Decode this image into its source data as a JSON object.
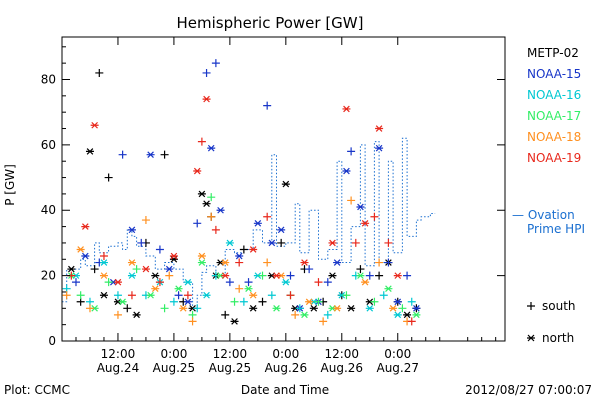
{
  "chart_data": {
    "type": "scatter",
    "title": "Hemispheric Power [GW]",
    "ylabel": "P [GW]",
    "xlabel": "Date and Time",
    "ylim": [
      0,
      93
    ],
    "y_ticks": [
      0,
      20,
      40,
      60,
      80
    ],
    "x_range_hours": [
      0,
      95
    ],
    "x_ticks": [
      {
        "hour": 12,
        "time": "12:00",
        "date": "Aug.24"
      },
      {
        "hour": 24,
        "time": "0:00",
        "date": "Aug.25"
      },
      {
        "hour": 36,
        "time": "12:00",
        "date": "Aug.25"
      },
      {
        "hour": 48,
        "time": "0:00",
        "date": "Aug.26"
      },
      {
        "hour": 60,
        "time": "12:00",
        "date": "Aug.26"
      },
      {
        "hour": 72,
        "time": "0:00",
        "date": "Aug.27"
      }
    ],
    "legend": {
      "placement": "right",
      "marker_south_label": "south",
      "marker_north_label": "north"
    },
    "series": [
      {
        "name": "METP-02",
        "color": "#000000",
        "points": [
          [
            2,
            22,
            "n"
          ],
          [
            4,
            12,
            "s"
          ],
          [
            6,
            58,
            "n"
          ],
          [
            7,
            22,
            "s"
          ],
          [
            8,
            82,
            "s"
          ],
          [
            9,
            14,
            "n"
          ],
          [
            10,
            50,
            "s"
          ],
          [
            12,
            12,
            "n"
          ],
          [
            14,
            10,
            "s"
          ],
          [
            16,
            8,
            "n"
          ],
          [
            18,
            30,
            "s"
          ],
          [
            20,
            20,
            "n"
          ],
          [
            22,
            57,
            "s"
          ],
          [
            24,
            25,
            "n"
          ],
          [
            26,
            12,
            "s"
          ],
          [
            28,
            10,
            "n"
          ],
          [
            30,
            45,
            "n"
          ],
          [
            31,
            42,
            "n"
          ],
          [
            32,
            38,
            "s"
          ],
          [
            33,
            20,
            "n"
          ],
          [
            34,
            24,
            "n"
          ],
          [
            35,
            8,
            "s"
          ],
          [
            37,
            6,
            "n"
          ],
          [
            39,
            28,
            "s"
          ],
          [
            41,
            10,
            "n"
          ],
          [
            43,
            12,
            "s"
          ],
          [
            45,
            20,
            "n"
          ],
          [
            47,
            30,
            "s"
          ],
          [
            48,
            48,
            "n"
          ],
          [
            50,
            10,
            "n"
          ],
          [
            52,
            22,
            "s"
          ],
          [
            54,
            10,
            "n"
          ],
          [
            56,
            12,
            "s"
          ],
          [
            58,
            20,
            "n"
          ],
          [
            60,
            14,
            "s"
          ],
          [
            62,
            10,
            "n"
          ],
          [
            64,
            22,
            "s"
          ],
          [
            66,
            12,
            "n"
          ],
          [
            68,
            20,
            "s"
          ],
          [
            70,
            24,
            "n"
          ],
          [
            72,
            12,
            "s"
          ],
          [
            74,
            8,
            "n"
          ],
          [
            76,
            10,
            "s"
          ]
        ]
      },
      {
        "name": "NOAA-15",
        "color": "#1836c8",
        "points": [
          [
            3,
            18,
            "s"
          ],
          [
            5,
            26,
            "n"
          ],
          [
            8,
            24,
            "s"
          ],
          [
            11,
            18,
            "n"
          ],
          [
            13,
            57,
            "s"
          ],
          [
            15,
            34,
            "n"
          ],
          [
            17,
            30,
            "s"
          ],
          [
            19,
            57,
            "n"
          ],
          [
            21,
            28,
            "s"
          ],
          [
            23,
            22,
            "n"
          ],
          [
            25,
            14,
            "s"
          ],
          [
            27,
            12,
            "n"
          ],
          [
            29,
            36,
            "s"
          ],
          [
            31,
            82,
            "s"
          ],
          [
            32,
            59,
            "n"
          ],
          [
            33,
            85,
            "s"
          ],
          [
            34,
            40,
            "n"
          ],
          [
            36,
            18,
            "s"
          ],
          [
            38,
            26,
            "n"
          ],
          [
            40,
            18,
            "s"
          ],
          [
            42,
            36,
            "n"
          ],
          [
            44,
            72,
            "s"
          ],
          [
            45,
            30,
            "n"
          ],
          [
            47,
            34,
            "n"
          ],
          [
            49,
            20,
            "s"
          ],
          [
            51,
            10,
            "n"
          ],
          [
            53,
            22,
            "s"
          ],
          [
            55,
            12,
            "n"
          ],
          [
            57,
            18,
            "s"
          ],
          [
            59,
            24,
            "n"
          ],
          [
            61,
            52,
            "n"
          ],
          [
            62,
            58,
            "s"
          ],
          [
            64,
            41,
            "n"
          ],
          [
            66,
            20,
            "s"
          ],
          [
            68,
            59,
            "n"
          ],
          [
            70,
            24,
            "s"
          ],
          [
            72,
            12,
            "n"
          ],
          [
            74,
            20,
            "s"
          ],
          [
            76,
            10,
            "n"
          ]
        ]
      },
      {
        "name": "NOAA-16",
        "color": "#00c8d2",
        "points": [
          [
            1,
            16,
            "s"
          ],
          [
            3,
            20,
            "n"
          ],
          [
            6,
            12,
            "s"
          ],
          [
            9,
            24,
            "n"
          ],
          [
            12,
            14,
            "s"
          ],
          [
            15,
            20,
            "n"
          ],
          [
            18,
            14,
            "s"
          ],
          [
            21,
            18,
            "n"
          ],
          [
            24,
            12,
            "s"
          ],
          [
            27,
            18,
            "n"
          ],
          [
            29,
            10,
            "s"
          ],
          [
            31,
            14,
            "n"
          ],
          [
            33,
            20,
            "s"
          ],
          [
            36,
            30,
            "n"
          ],
          [
            39,
            12,
            "s"
          ],
          [
            42,
            20,
            "n"
          ],
          [
            45,
            14,
            "s"
          ],
          [
            48,
            18,
            "n"
          ],
          [
            51,
            10,
            "s"
          ],
          [
            54,
            12,
            "n"
          ],
          [
            57,
            8,
            "s"
          ],
          [
            60,
            14,
            "n"
          ],
          [
            63,
            20,
            "s"
          ],
          [
            66,
            10,
            "n"
          ],
          [
            69,
            14,
            "s"
          ],
          [
            72,
            8,
            "n"
          ],
          [
            75,
            12,
            "s"
          ]
        ]
      },
      {
        "name": "NOAA-17",
        "color": "#33ee66",
        "points": [
          [
            2,
            20,
            "n"
          ],
          [
            4,
            14,
            "s"
          ],
          [
            7,
            10,
            "n"
          ],
          [
            10,
            18,
            "s"
          ],
          [
            13,
            12,
            "n"
          ],
          [
            16,
            22,
            "s"
          ],
          [
            19,
            14,
            "n"
          ],
          [
            22,
            10,
            "s"
          ],
          [
            25,
            16,
            "n"
          ],
          [
            28,
            8,
            "s"
          ],
          [
            30,
            24,
            "n"
          ],
          [
            32,
            44,
            "s"
          ],
          [
            34,
            20,
            "n"
          ],
          [
            37,
            12,
            "s"
          ],
          [
            40,
            16,
            "n"
          ],
          [
            43,
            20,
            "s"
          ],
          [
            46,
            10,
            "n"
          ],
          [
            49,
            14,
            "s"
          ],
          [
            52,
            8,
            "n"
          ],
          [
            55,
            12,
            "s"
          ],
          [
            58,
            10,
            "n"
          ],
          [
            61,
            14,
            "s"
          ],
          [
            64,
            20,
            "n"
          ],
          [
            67,
            12,
            "s"
          ],
          [
            70,
            16,
            "n"
          ],
          [
            73,
            10,
            "s"
          ],
          [
            76,
            8,
            "n"
          ]
        ]
      },
      {
        "name": "NOAA-18",
        "color": "#ff9020",
        "points": [
          [
            1,
            14,
            "s"
          ],
          [
            4,
            28,
            "n"
          ],
          [
            6,
            10,
            "s"
          ],
          [
            9,
            20,
            "n"
          ],
          [
            12,
            8,
            "s"
          ],
          [
            15,
            24,
            "n"
          ],
          [
            18,
            37,
            "s"
          ],
          [
            20,
            16,
            "n"
          ],
          [
            23,
            20,
            "s"
          ],
          [
            26,
            10,
            "n"
          ],
          [
            28,
            6,
            "s"
          ],
          [
            30,
            26,
            "n"
          ],
          [
            32,
            38,
            "s"
          ],
          [
            35,
            24,
            "n"
          ],
          [
            38,
            16,
            "s"
          ],
          [
            41,
            14,
            "n"
          ],
          [
            44,
            24,
            "s"
          ],
          [
            47,
            20,
            "n"
          ],
          [
            50,
            8,
            "s"
          ],
          [
            53,
            12,
            "n"
          ],
          [
            56,
            6,
            "s"
          ],
          [
            59,
            10,
            "n"
          ],
          [
            62,
            43,
            "s"
          ],
          [
            65,
            18,
            "n"
          ],
          [
            68,
            24,
            "s"
          ],
          [
            71,
            10,
            "n"
          ],
          [
            74,
            6,
            "s"
          ]
        ]
      },
      {
        "name": "NOAA-19",
        "color": "#e8281c",
        "points": [
          [
            2,
            20,
            "s"
          ],
          [
            5,
            35,
            "n"
          ],
          [
            7,
            66,
            "n"
          ],
          [
            9,
            26,
            "s"
          ],
          [
            12,
            18,
            "n"
          ],
          [
            15,
            14,
            "s"
          ],
          [
            18,
            22,
            "n"
          ],
          [
            21,
            18,
            "s"
          ],
          [
            24,
            26,
            "n"
          ],
          [
            27,
            14,
            "s"
          ],
          [
            29,
            52,
            "n"
          ],
          [
            30,
            61,
            "s"
          ],
          [
            31,
            74,
            "n"
          ],
          [
            33,
            34,
            "s"
          ],
          [
            35,
            20,
            "n"
          ],
          [
            38,
            24,
            "s"
          ],
          [
            41,
            28,
            "n"
          ],
          [
            44,
            38,
            "s"
          ],
          [
            46,
            20,
            "n"
          ],
          [
            49,
            14,
            "s"
          ],
          [
            52,
            24,
            "n"
          ],
          [
            55,
            18,
            "s"
          ],
          [
            58,
            30,
            "n"
          ],
          [
            61,
            71,
            "n"
          ],
          [
            63,
            30,
            "s"
          ],
          [
            65,
            36,
            "n"
          ],
          [
            67,
            38,
            "s"
          ],
          [
            68,
            65,
            "n"
          ],
          [
            70,
            30,
            "s"
          ],
          [
            72,
            20,
            "n"
          ],
          [
            75,
            6,
            "s"
          ]
        ]
      }
    ],
    "ovation": {
      "name": "— Ovation Prime HPI",
      "name_line1": "— Ovation",
      "name_line2": "Prime HPI",
      "color": "#1a6fd0",
      "steps": [
        [
          0,
          12
        ],
        [
          1,
          22
        ],
        [
          4,
          25
        ],
        [
          5,
          23
        ],
        [
          7,
          30
        ],
        [
          8,
          27
        ],
        [
          10,
          29
        ],
        [
          12,
          30
        ],
        [
          13,
          28
        ],
        [
          14,
          34
        ],
        [
          15,
          32
        ],
        [
          16,
          29
        ],
        [
          18,
          26
        ],
        [
          20,
          22
        ],
        [
          22,
          24
        ],
        [
          24,
          22
        ],
        [
          26,
          18
        ],
        [
          28,
          10
        ],
        [
          29,
          14
        ],
        [
          30,
          21
        ],
        [
          31,
          23
        ],
        [
          33,
          20
        ],
        [
          35,
          28
        ],
        [
          37,
          27
        ],
        [
          39,
          28
        ],
        [
          41,
          34
        ],
        [
          43,
          30
        ],
        [
          45,
          57
        ],
        [
          46,
          29
        ],
        [
          48,
          30
        ],
        [
          50,
          42
        ],
        [
          51,
          27
        ],
        [
          53,
          40
        ],
        [
          55,
          25
        ],
        [
          57,
          28
        ],
        [
          59,
          55
        ],
        [
          60,
          24
        ],
        [
          62,
          35
        ],
        [
          64,
          60
        ],
        [
          65,
          23
        ],
        [
          67,
          61
        ],
        [
          68,
          24
        ],
        [
          70,
          55
        ],
        [
          71,
          27
        ],
        [
          73,
          62
        ],
        [
          74,
          32
        ],
        [
          76,
          37
        ],
        [
          77,
          38
        ],
        [
          79,
          39
        ]
      ],
      "end_hour": 80
    },
    "footer": {
      "left": "Plot: CCMC",
      "right": "2012/08/27 07:00:07"
    }
  }
}
